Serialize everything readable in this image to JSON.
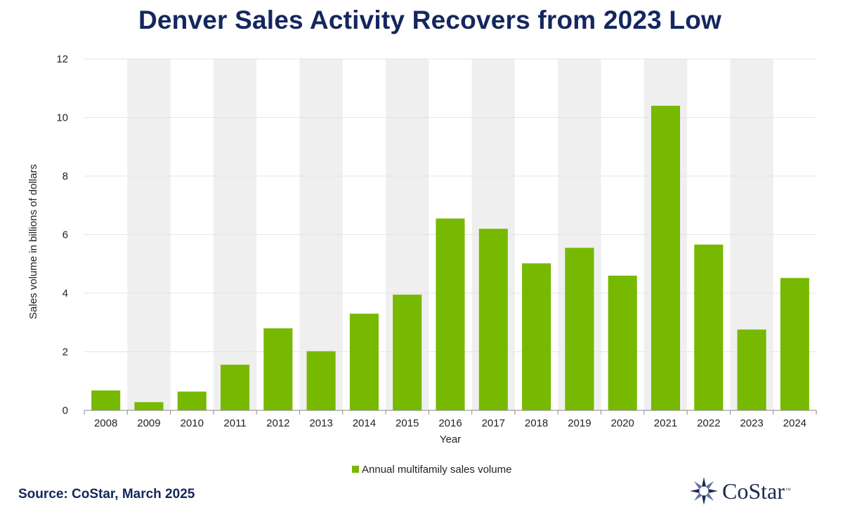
{
  "header": {
    "title": "Denver Sales Activity Recovers from 2023 Low"
  },
  "chart_data": {
    "type": "bar",
    "categories": [
      "2008",
      "2009",
      "2010",
      "2011",
      "2012",
      "2013",
      "2014",
      "2015",
      "2016",
      "2017",
      "2018",
      "2019",
      "2020",
      "2021",
      "2022",
      "2023",
      "2024"
    ],
    "series": [
      {
        "name": "Annual multifamily sales volume",
        "values": [
          0.68,
          0.28,
          0.64,
          1.56,
          2.8,
          2.02,
          3.3,
          3.95,
          6.55,
          6.2,
          5.02,
          5.55,
          4.6,
          10.4,
          5.66,
          2.76,
          4.52
        ],
        "color": "#77b800"
      }
    ],
    "xlabel": "Year",
    "ylabel": "Sales volume in billions of dollars",
    "ylim": [
      0,
      12
    ],
    "yticks": [
      "0",
      "2",
      "4",
      "6",
      "8",
      "10",
      "12"
    ],
    "grid": true,
    "alternating_column_shading": true,
    "legend_position": "bottom"
  },
  "colors": {
    "title": "#14275e",
    "bar": "#77b800",
    "band": "#efefef",
    "gridline": "#e4e4e4",
    "axis": "#888888",
    "text": "#222222",
    "source": "#14275e",
    "logo_dark": "#1e2a4f",
    "logo_light": "#5b74a8"
  },
  "footer": {
    "source": "Source: CoStar, March 2025",
    "logo_text": "CoStar",
    "logo_tm": "™"
  }
}
